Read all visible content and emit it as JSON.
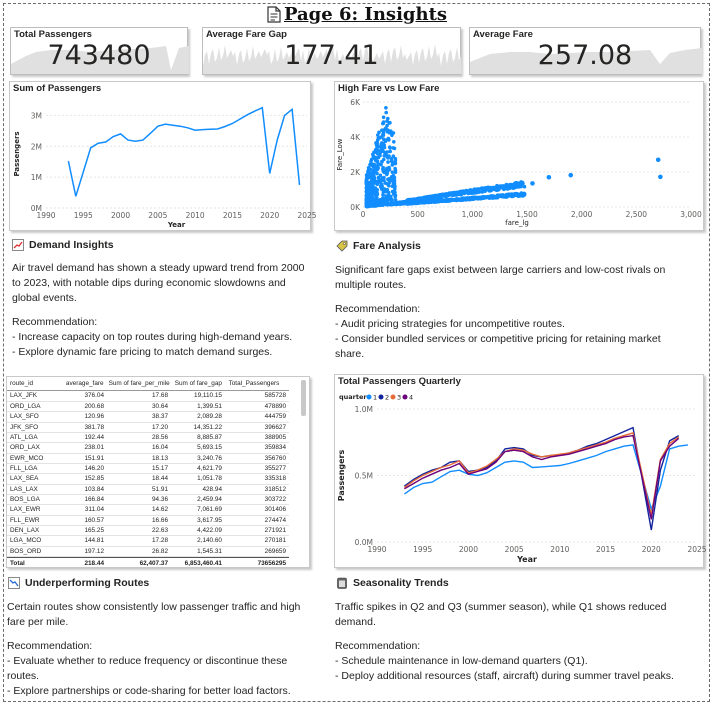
{
  "page": {
    "title": "Page 6: Insights"
  },
  "kpis": [
    {
      "label": "Total Passengers",
      "value": "743480"
    },
    {
      "label": "Average Fare Gap",
      "value": "177.41"
    },
    {
      "label": "Average Fare",
      "value": "257.08"
    }
  ],
  "colors": {
    "accent": "#118dff",
    "kpi_sparkline": "#e0e0e0",
    "dark_blue": "#12239e",
    "orange": "#e66c37",
    "purple": "#6b007b"
  },
  "chart_data": [
    {
      "id": "sum_passengers",
      "type": "line",
      "title": "Sum of Passengers",
      "xlabel": "Year",
      "ylabel": "Passengers",
      "xlim": [
        1990,
        2025
      ],
      "ylim": [
        0,
        3500000
      ],
      "x_ticks": [
        "1990",
        "1995",
        "2000",
        "2005",
        "2010",
        "2015",
        "2020",
        "2025"
      ],
      "y_ticks": [
        "0M",
        "1M",
        "2M",
        "3M"
      ],
      "series": [
        {
          "x": [
            1993,
            1994,
            1996,
            1997,
            1998,
            1999,
            2000,
            2001,
            2002,
            2003,
            2004,
            2005,
            2006,
            2007,
            2008,
            2009,
            2010,
            2011,
            2012,
            2013,
            2014,
            2015,
            2016,
            2017,
            2018,
            2019,
            2020,
            2021,
            2022,
            2023,
            2024
          ],
          "y": [
            1520000,
            380000,
            1950000,
            2100000,
            2140000,
            2310000,
            2400000,
            2200000,
            2160000,
            2200000,
            2420000,
            2650000,
            2720000,
            2680000,
            2650000,
            2600000,
            2520000,
            2540000,
            2550000,
            2560000,
            2640000,
            2740000,
            2880000,
            3020000,
            3140000,
            3250000,
            1120000,
            2200000,
            3000000,
            3200000,
            750000
          ]
        }
      ]
    },
    {
      "id": "high_vs_low_fare",
      "type": "scatter",
      "title": "High Fare vs Low Fare",
      "xlabel": "fare_lg",
      "ylabel": "Fare_Low",
      "xlim": [
        0,
        3000
      ],
      "ylim": [
        0,
        6000
      ],
      "x_ticks": [
        "0",
        "500",
        "1,000",
        "1,500",
        "2,000",
        "2,500",
        "3,000"
      ],
      "y_ticks": [
        "0K",
        "2K",
        "4K",
        "6K"
      ],
      "points": [
        [
          2700,
          2700
        ],
        [
          2720,
          1720
        ],
        [
          1900,
          1820
        ],
        [
          1700,
          1700
        ],
        [
          1550,
          1350
        ]
      ]
    },
    {
      "id": "passengers_quarterly",
      "type": "line",
      "title": "Total Passengers Quarterly",
      "xlabel": "Year",
      "ylabel": "Passengers",
      "legend_title": "quarter",
      "legend_position": "top-left",
      "xlim": [
        1990,
        2025
      ],
      "ylim": [
        0,
        1000000
      ],
      "x_ticks": [
        "1990",
        "1995",
        "2000",
        "2005",
        "2010",
        "2015",
        "2020",
        "2025"
      ],
      "y_ticks": [
        "0.0M",
        "0.5M",
        "1.0M"
      ],
      "series": [
        {
          "name": "1",
          "color": "#118dff",
          "y": [
            360000,
            410000,
            440000,
            450000,
            490000,
            530000,
            540000,
            510000,
            500000,
            520000,
            560000,
            600000,
            610000,
            600000,
            560000,
            565000,
            570000,
            575000,
            590000,
            610000,
            630000,
            650000,
            680000,
            700000,
            720000,
            730000,
            250000,
            420000,
            700000,
            720000,
            730000
          ]
        },
        {
          "name": "2",
          "color": "#12239e",
          "y": [
            420000,
            470000,
            510000,
            540000,
            560000,
            600000,
            610000,
            530000,
            540000,
            560000,
            610000,
            700000,
            710000,
            700000,
            650000,
            640000,
            650000,
            655000,
            670000,
            690000,
            720000,
            740000,
            770000,
            800000,
            830000,
            860000,
            90000,
            540000,
            760000,
            800000,
            0
          ]
        },
        {
          "name": "3",
          "color": "#e66c37",
          "y": [
            410000,
            460000,
            500000,
            530000,
            560000,
            580000,
            610000,
            520000,
            540000,
            570000,
            620000,
            680000,
            700000,
            690000,
            660000,
            640000,
            650000,
            660000,
            670000,
            690000,
            710000,
            730000,
            750000,
            780000,
            800000,
            820000,
            200000,
            620000,
            740000,
            790000,
            0
          ]
        },
        {
          "name": "4",
          "color": "#6b007b",
          "y": [
            400000,
            440000,
            480000,
            510000,
            540000,
            560000,
            590000,
            510000,
            530000,
            550000,
            600000,
            680000,
            690000,
            680000,
            640000,
            620000,
            640000,
            650000,
            660000,
            680000,
            700000,
            720000,
            740000,
            770000,
            790000,
            800000,
            170000,
            610000,
            720000,
            780000,
            0
          ]
        }
      ],
      "x": [
        1993,
        1994,
        1995,
        1996,
        1997,
        1998,
        1999,
        2000,
        2001,
        2002,
        2003,
        2004,
        2005,
        2006,
        2007,
        2008,
        2009,
        2010,
        2011,
        2012,
        2013,
        2014,
        2015,
        2016,
        2017,
        2018,
        2020,
        2021,
        2022,
        2023,
        2024
      ]
    }
  ],
  "demand": {
    "heading": "Demand Insights",
    "body": "Air travel demand has shown a steady upward trend from 2000 to 2023, with notable dips during economic slowdowns and global events.",
    "rec_label": "Recommendation:",
    "rec": [
      "- Increase capacity on top routes during high-demand years.",
      "- Explore dynamic fare pricing to match demand surges."
    ]
  },
  "fare": {
    "heading": "Fare Analysis",
    "body": "Significant fare gaps exist between large carriers and low-cost rivals on multiple routes.",
    "rec_label": "Recommendation:",
    "rec": [
      "- Audit pricing strategies for uncompetitive routes.",
      "- Consider bundled services or competitive pricing for retaining market share."
    ]
  },
  "routes": {
    "heading": "Underperforming Routes",
    "body": "Certain routes show consistently low passenger traffic and high fare per mile.",
    "rec_label": "Recommendation:",
    "rec": [
      "- Evaluate whether to reduce frequency or discontinue these routes.",
      "- Explore partnerships or code-sharing for better load factors."
    ]
  },
  "season": {
    "heading": "Seasonality Trends",
    "body": "Traffic spikes in Q2 and Q3 (summer season), while Q1 shows reduced demand.",
    "rec_label": "Recommendation:",
    "rec": [
      "- Schedule maintenance in low-demand quarters (Q1).",
      "- Deploy additional resources (staff, aircraft) during summer travel peaks."
    ]
  },
  "table": {
    "columns": [
      "route_id",
      "average_fare",
      "Sum of fare_per_mile",
      "Sum of fare_gap",
      "Total_Passengers"
    ],
    "rows": [
      [
        "LAX_JFK",
        "376.04",
        "17.68",
        "19,110.15",
        "585728"
      ],
      [
        "ORD_LGA",
        "200.68",
        "30.64",
        "1,399.51",
        "478890"
      ],
      [
        "LAX_SFO",
        "120.96",
        "38.37",
        "2,089.28",
        "444759"
      ],
      [
        "JFK_SFO",
        "381.78",
        "17.20",
        "14,351.22",
        "396627"
      ],
      [
        "ATL_LGA",
        "192.44",
        "28.56",
        "8,885.87",
        "388905"
      ],
      [
        "ORD_LAX",
        "238.01",
        "16.04",
        "5,693.15",
        "359834"
      ],
      [
        "EWR_MCO",
        "151.91",
        "18.13",
        "3,240.76",
        "356760"
      ],
      [
        "FLL_LGA",
        "146.20",
        "15.17",
        "4,621.79",
        "355277"
      ],
      [
        "LAX_SEA",
        "152.85",
        "18.44",
        "1,051.78",
        "335318"
      ],
      [
        "LAS_LAX",
        "103.84",
        "51.91",
        "428.94",
        "318512"
      ],
      [
        "BOS_LGA",
        "166.84",
        "94.36",
        "2,459.94",
        "303722"
      ],
      [
        "LAX_EWR",
        "311.04",
        "14.62",
        "7,061.69",
        "301406"
      ],
      [
        "FLL_EWR",
        "160.57",
        "16.66",
        "3,617.95",
        "274474"
      ],
      [
        "DEN_LAX",
        "165.25",
        "22.63",
        "4,422.09",
        "271921"
      ],
      [
        "LGA_MCO",
        "144.81",
        "17.28",
        "2,140.60",
        "270181"
      ],
      [
        "BOS_ORD",
        "197.12",
        "26.82",
        "1,545.31",
        "269659"
      ]
    ],
    "total": [
      "Total",
      "218.44",
      "62,407.37",
      "6,853,460.41",
      "73656295"
    ]
  }
}
